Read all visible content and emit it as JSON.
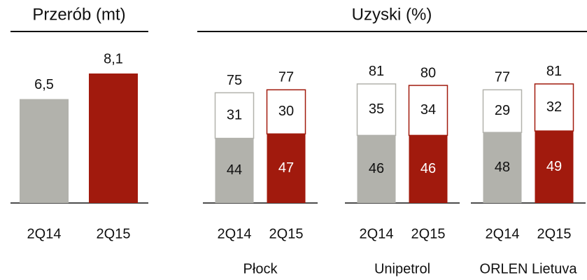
{
  "chart_data": [
    {
      "type": "bar",
      "title": "Przerób (mt)",
      "categories": [
        "2Q14",
        "2Q15"
      ],
      "values": [
        6.5,
        8.1
      ],
      "value_labels": [
        "6,5",
        "8,1"
      ],
      "colors": [
        "#b2b2ac",
        "#a11a0d"
      ]
    },
    {
      "type": "stacked_bar",
      "title": "Uzyski (%)",
      "groups": [
        "Płock",
        "Unipetrol",
        "ORLEN Lietuva"
      ],
      "categories": [
        "2Q14",
        "2Q15",
        "2Q14",
        "2Q15",
        "2Q14",
        "2Q15"
      ],
      "series": [
        {
          "values": [
            44,
            47,
            46,
            46,
            48,
            49
          ]
        },
        {
          "values": [
            31,
            30,
            35,
            34,
            29,
            32
          ]
        }
      ],
      "totals": [
        75,
        77,
        81,
        80,
        77,
        81
      ],
      "colors": [
        "#b2b2ac",
        "#a11a0d"
      ]
    }
  ]
}
